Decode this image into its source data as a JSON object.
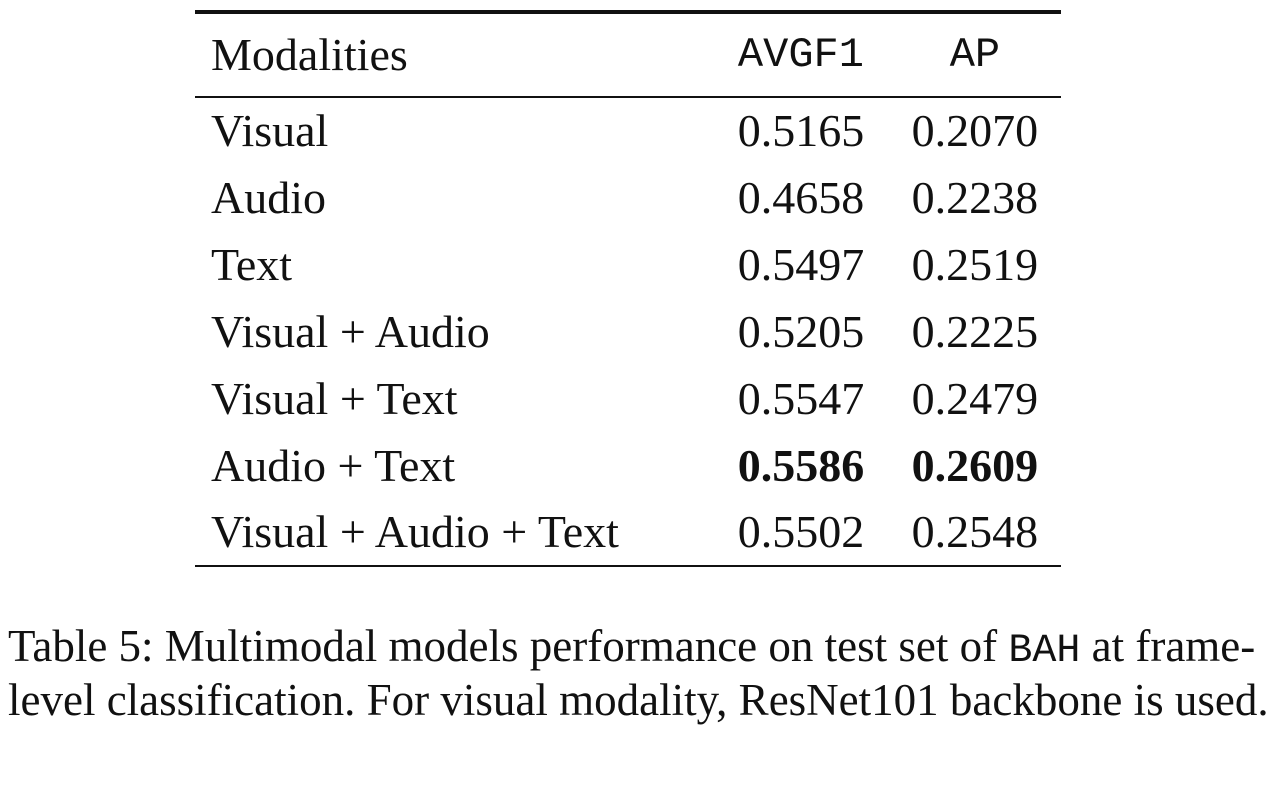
{
  "table": {
    "headers": {
      "modalities": "Modalities",
      "avgf1": "AVGF1",
      "ap": "AP"
    },
    "rows": [
      {
        "modalities": "Visual",
        "avgf1": "0.5165",
        "ap": "0.2070",
        "bold": false
      },
      {
        "modalities": "Audio",
        "avgf1": "0.4658",
        "ap": "0.2238",
        "bold": false
      },
      {
        "modalities": "Text",
        "avgf1": "0.5497",
        "ap": "0.2519",
        "bold": false
      },
      {
        "modalities": "Visual + Audio",
        "avgf1": "0.5205",
        "ap": "0.2225",
        "bold": false
      },
      {
        "modalities": "Visual + Text",
        "avgf1": "0.5547",
        "ap": "0.2479",
        "bold": false
      },
      {
        "modalities": "Audio + Text",
        "avgf1": "0.5586",
        "ap": "0.2609",
        "bold": true
      },
      {
        "modalities": "Visual + Audio + Text",
        "avgf1": "0.5502",
        "ap": "0.2548",
        "bold": false
      }
    ]
  },
  "caption": {
    "label": "Table 5:",
    "text_before": "Multimodal models performance on test set of",
    "dataset": "BAH",
    "text_after": "at frame-level classification. For visual modality, ResNet101 backbone is used."
  }
}
